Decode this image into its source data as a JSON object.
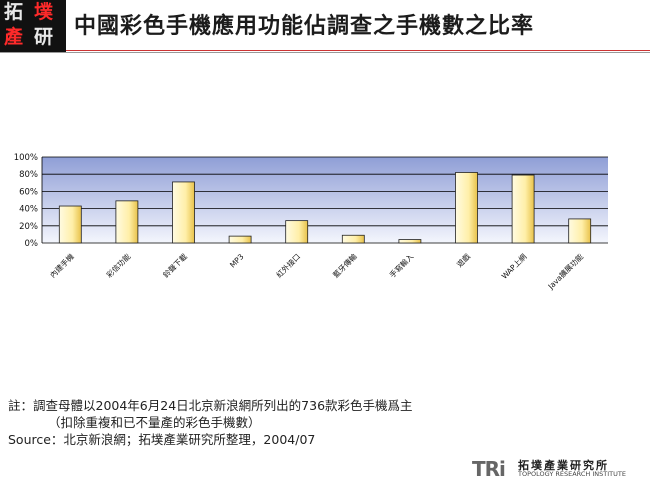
{
  "logo": {
    "glyphs": [
      "拓",
      "墣",
      "產",
      "研"
    ]
  },
  "title": "中國彩色手機應用功能佔調查之手機數之比率",
  "chart_data": {
    "type": "bar",
    "categories": [
      "內建手機",
      "彩信功能",
      "鈴聲下載",
      "MP3",
      "紅外接口",
      "藍牙傳輸",
      "手寫輸入",
      "遊戲",
      "WAP上網",
      "Java擴展功能"
    ],
    "values": [
      43,
      49,
      71,
      8,
      26,
      9,
      4,
      82,
      79,
      28
    ],
    "yticks": [
      "0%",
      "20%",
      "40%",
      "60%",
      "80%",
      "100%"
    ],
    "ylim": [
      0,
      100
    ],
    "grid": true,
    "bar_color": "#fff2b0"
  },
  "notes": {
    "line1": "註：調查母體以2004年6月24日北京新浪網所列出的736款彩色手機爲主",
    "line2": "（扣除重複和已不量產的彩色手機數）",
    "line3": "Source：北京新浪網；拓墣產業研究所整理，2004/07"
  },
  "footer": {
    "tri": "TRi",
    "cn": "拓墣產業研究所",
    "en": "TOPOLOGY RESEARCH INSTITUTE"
  }
}
